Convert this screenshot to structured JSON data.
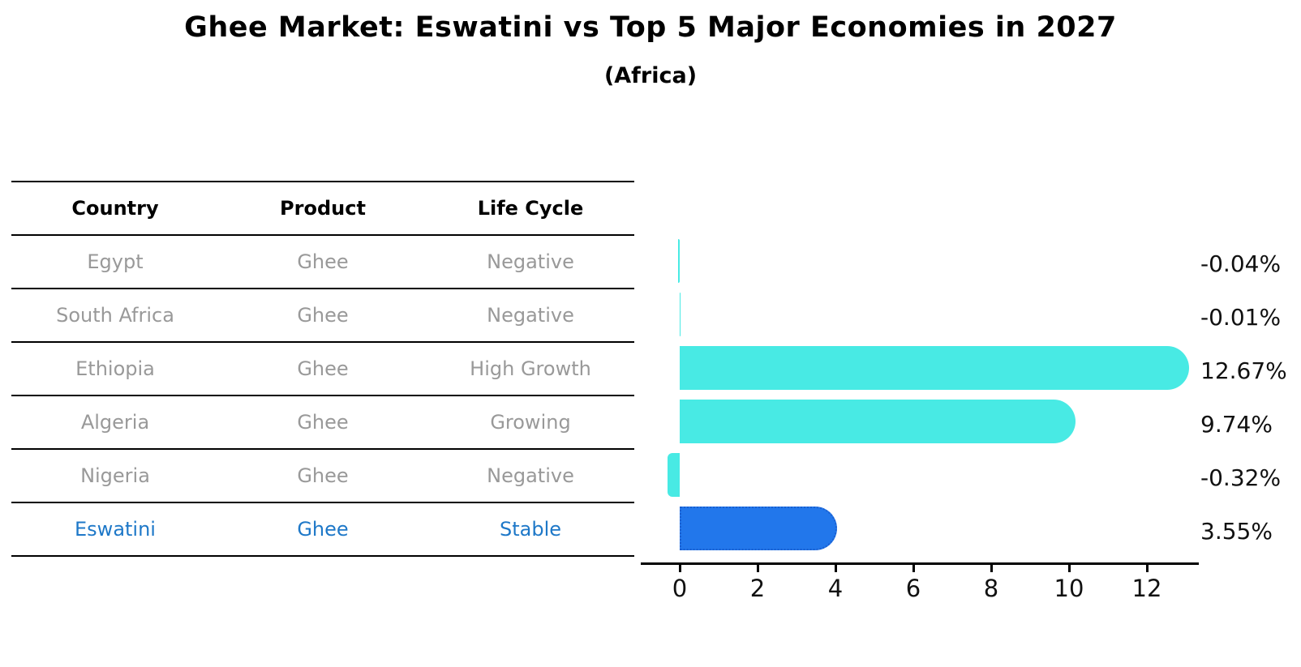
{
  "title": "Ghee Market: Eswatini vs Top 5 Major Economies in 2027",
  "subtitle": "(Africa)",
  "table": {
    "headers": [
      "Country",
      "Product",
      "Life Cycle"
    ],
    "rows": [
      {
        "country": "Egypt",
        "product": "Ghee",
        "life_cycle": "Negative",
        "highlight": false
      },
      {
        "country": "South Africa",
        "product": "Ghee",
        "life_cycle": "Negative",
        "highlight": false
      },
      {
        "country": "Ethiopia",
        "product": "Ghee",
        "life_cycle": "High Growth",
        "highlight": false
      },
      {
        "country": "Algeria",
        "product": "Ghee",
        "life_cycle": "Growing",
        "highlight": false
      },
      {
        "country": "Nigeria",
        "product": "Ghee",
        "life_cycle": "Negative",
        "highlight": false
      },
      {
        "country": "Eswatini",
        "product": "Ghee",
        "life_cycle": "Stable",
        "highlight": true
      }
    ]
  },
  "chart_data": {
    "type": "bar",
    "orientation": "horizontal",
    "title": "Ghee Market: Eswatini vs Top 5 Major Economies in 2027",
    "subtitle": "(Africa)",
    "categories": [
      "Egypt",
      "South Africa",
      "Ethiopia",
      "Algeria",
      "Nigeria",
      "Eswatini"
    ],
    "values": [
      -0.04,
      -0.01,
      12.67,
      9.74,
      -0.32,
      3.55
    ],
    "value_labels": [
      "-0.04%",
      "-0.01%",
      "12.67%",
      "9.74%",
      "-0.32%",
      "3.55%"
    ],
    "x_ticks": [
      0,
      2,
      4,
      6,
      8,
      10,
      12
    ],
    "xlim": [
      -1,
      13.3
    ],
    "grid": false,
    "legend": false,
    "highlight_index": 5,
    "colors": {
      "bar_default": "#48eae4",
      "bar_highlight": "#2277eb",
      "bar_highlight_border": "#1a5fd0",
      "table_text_default": "#999999",
      "table_text_highlight": "#1e78c8",
      "axis": "#000000",
      "label_text": "#111111"
    }
  }
}
